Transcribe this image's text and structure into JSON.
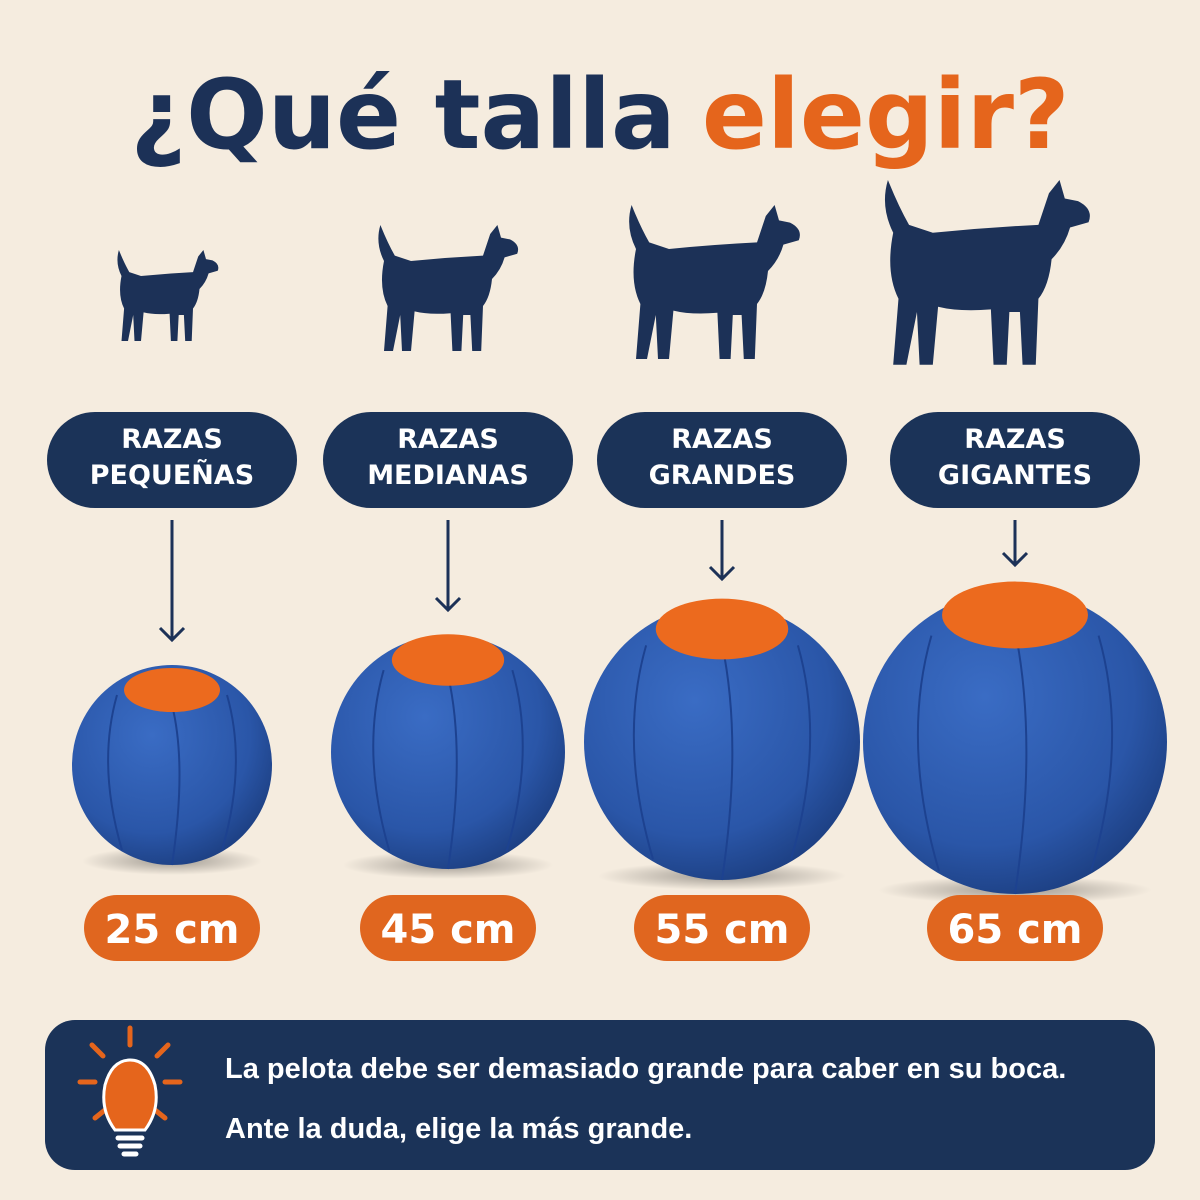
{
  "header": {
    "title": "¿Qué talla",
    "title_highlight": "elegir?"
  },
  "sizes": [
    {
      "label": [
        "RAZAS",
        "PEQUEÑAS"
      ],
      "size": "25 cm"
    },
    {
      "label": [
        "RAZAS",
        "MEDIANAS"
      ],
      "size": "45 cm"
    },
    {
      "label": [
        "RAZAS",
        "GRANDES"
      ],
      "size": "55 cm"
    },
    {
      "label": [
        "RAZAS",
        "GIGANTES"
      ],
      "size": "65 cm"
    }
  ],
  "tip": {
    "lines": [
      "La pelota debe ser demasiado grande para caber en su boca.",
      "Ante la duda, elige la más grande."
    ]
  }
}
